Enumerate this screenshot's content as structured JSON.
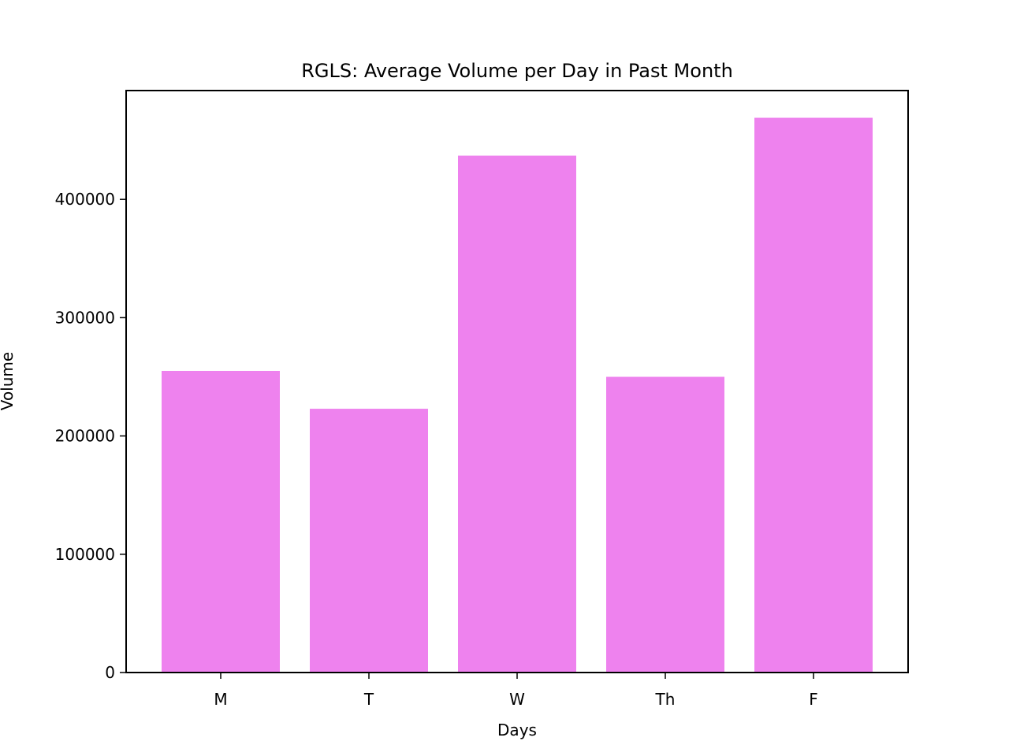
{
  "chart_data": {
    "type": "bar",
    "title": "RGLS: Average Volume per Day in Past Month",
    "xlabel": "Days",
    "ylabel": "Volume",
    "categories": [
      "M",
      "T",
      "W",
      "Th",
      "F"
    ],
    "values": [
      255000,
      223000,
      437000,
      250000,
      469000
    ],
    "ylim": [
      0,
      492000
    ],
    "yticks": [
      0,
      100000,
      200000,
      300000,
      400000
    ],
    "ytick_labels": [
      "0",
      "100000",
      "200000",
      "300000",
      "400000"
    ],
    "bar_color": "#ee82ee",
    "grid": false,
    "legend": "none"
  }
}
